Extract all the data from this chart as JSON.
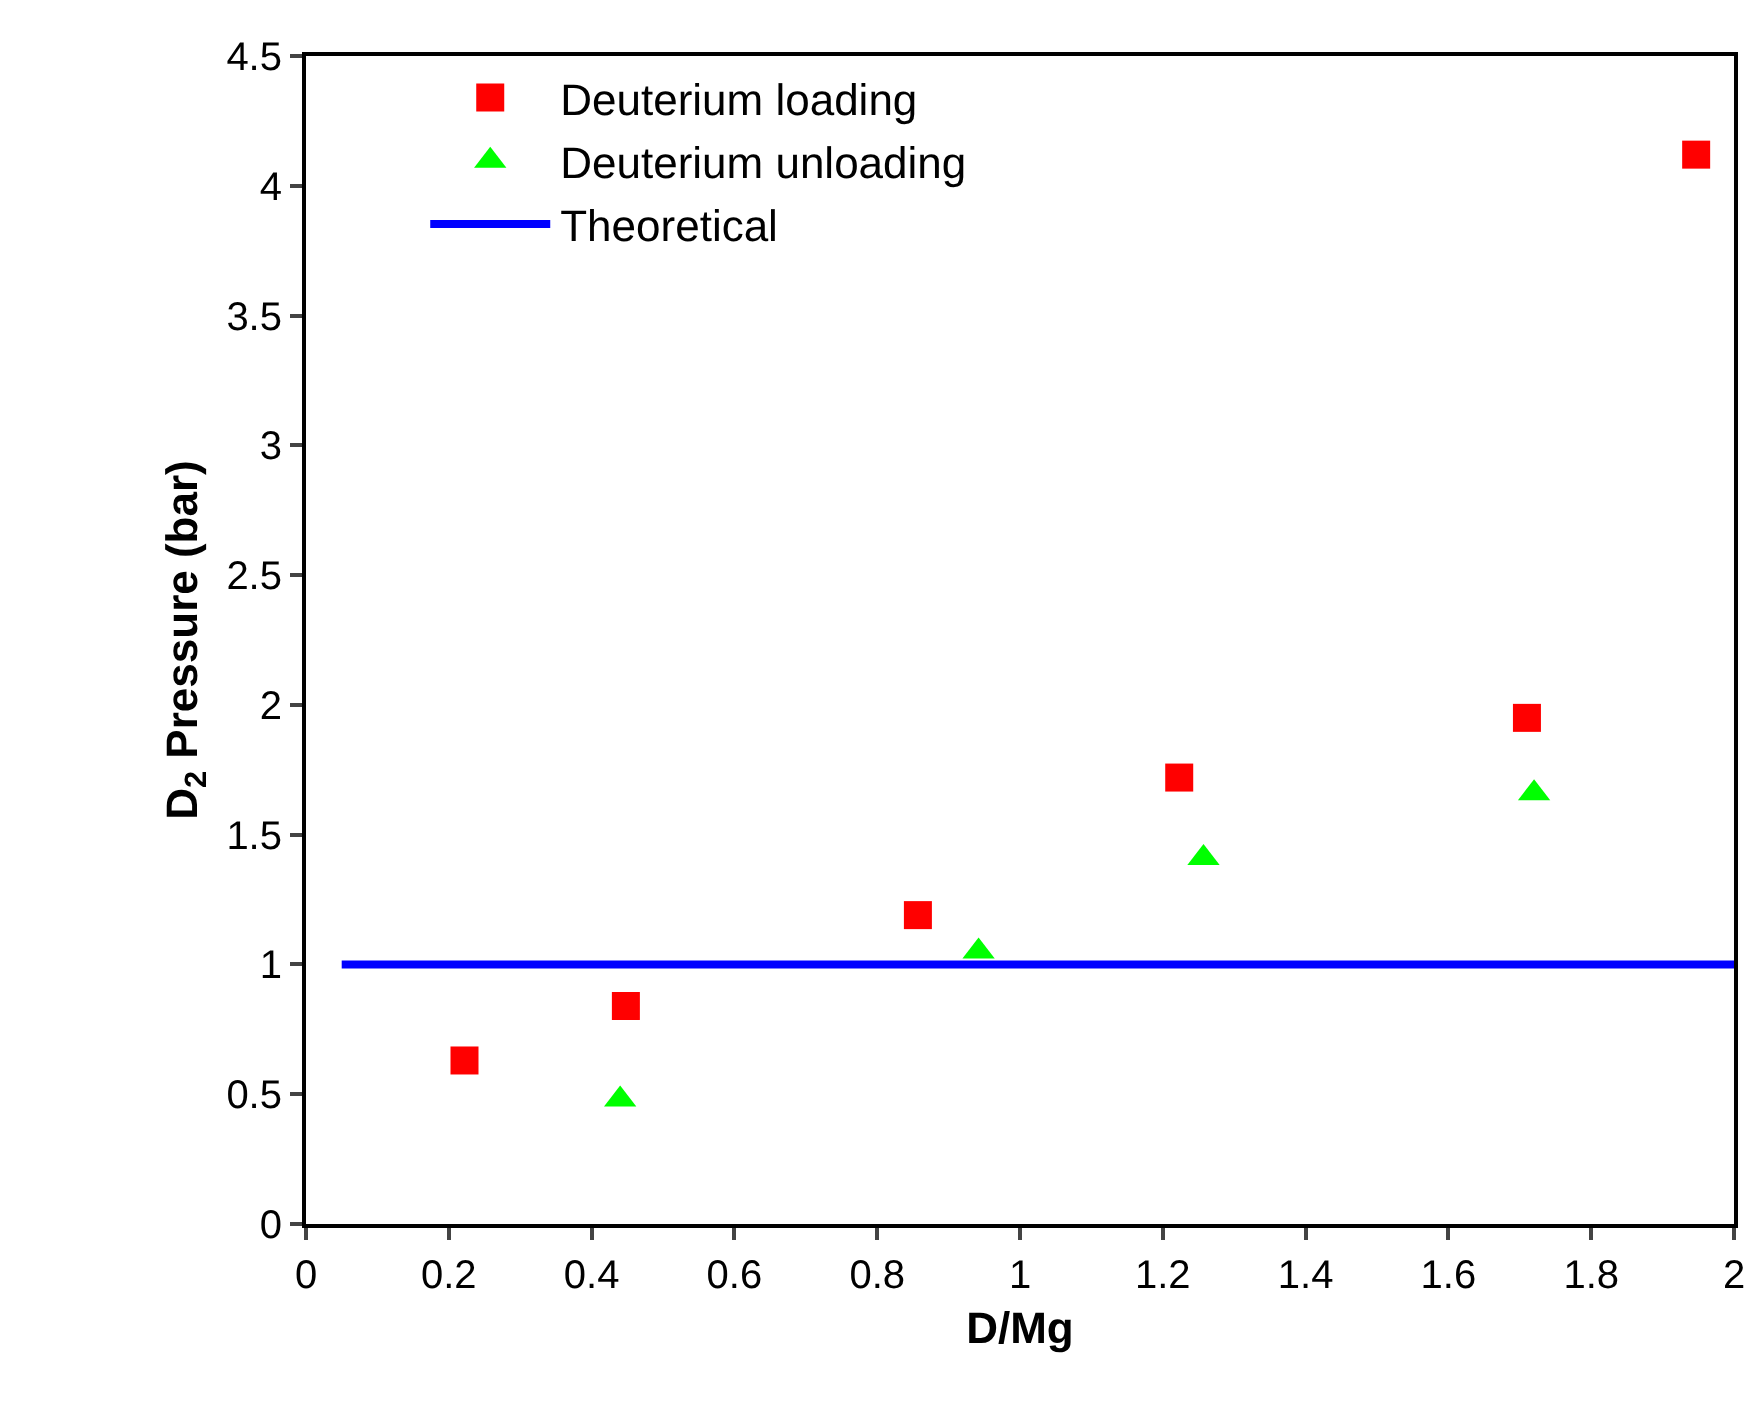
{
  "chart_data": {
    "type": "scatter",
    "xlabel": "D/Mg",
    "ylabel": "D$_{2}$ Pressure (bar)",
    "xlim": [
      0,
      2
    ],
    "xticks": [
      0,
      0.2,
      0.4,
      0.6,
      0.8,
      1,
      1.2,
      1.4,
      1.6,
      1.8,
      2
    ],
    "ylim": [
      0,
      4.5
    ],
    "yticks": [
      0,
      0.5,
      1,
      1.5,
      2,
      2.5,
      3,
      3.5,
      4,
      4.5
    ],
    "grid": false,
    "legend": "top left",
    "series": [
      {
        "name": "Deuterium loading",
        "color": "#ff0000",
        "marker": "square",
        "x": [
          0.222,
          0.448,
          0.857,
          1.223,
          1.71,
          1.947
        ],
        "values": [
          0.63,
          0.84,
          1.19,
          1.72,
          1.95,
          4.12
        ]
      },
      {
        "name": "Deuterium unloading",
        "color": "#00ff00",
        "marker": "triangle",
        "x": [
          0.44,
          0.942,
          1.257,
          1.72
        ],
        "values": [
          0.48,
          1.05,
          1.41,
          1.66
        ]
      },
      {
        "name": "Theoretical",
        "type": "line",
        "color": "#0000ff",
        "marker": "none",
        "line_style": "solid",
        "x": [
          0.05,
          2
        ],
        "values": [
          1,
          1
        ]
      }
    ]
  }
}
